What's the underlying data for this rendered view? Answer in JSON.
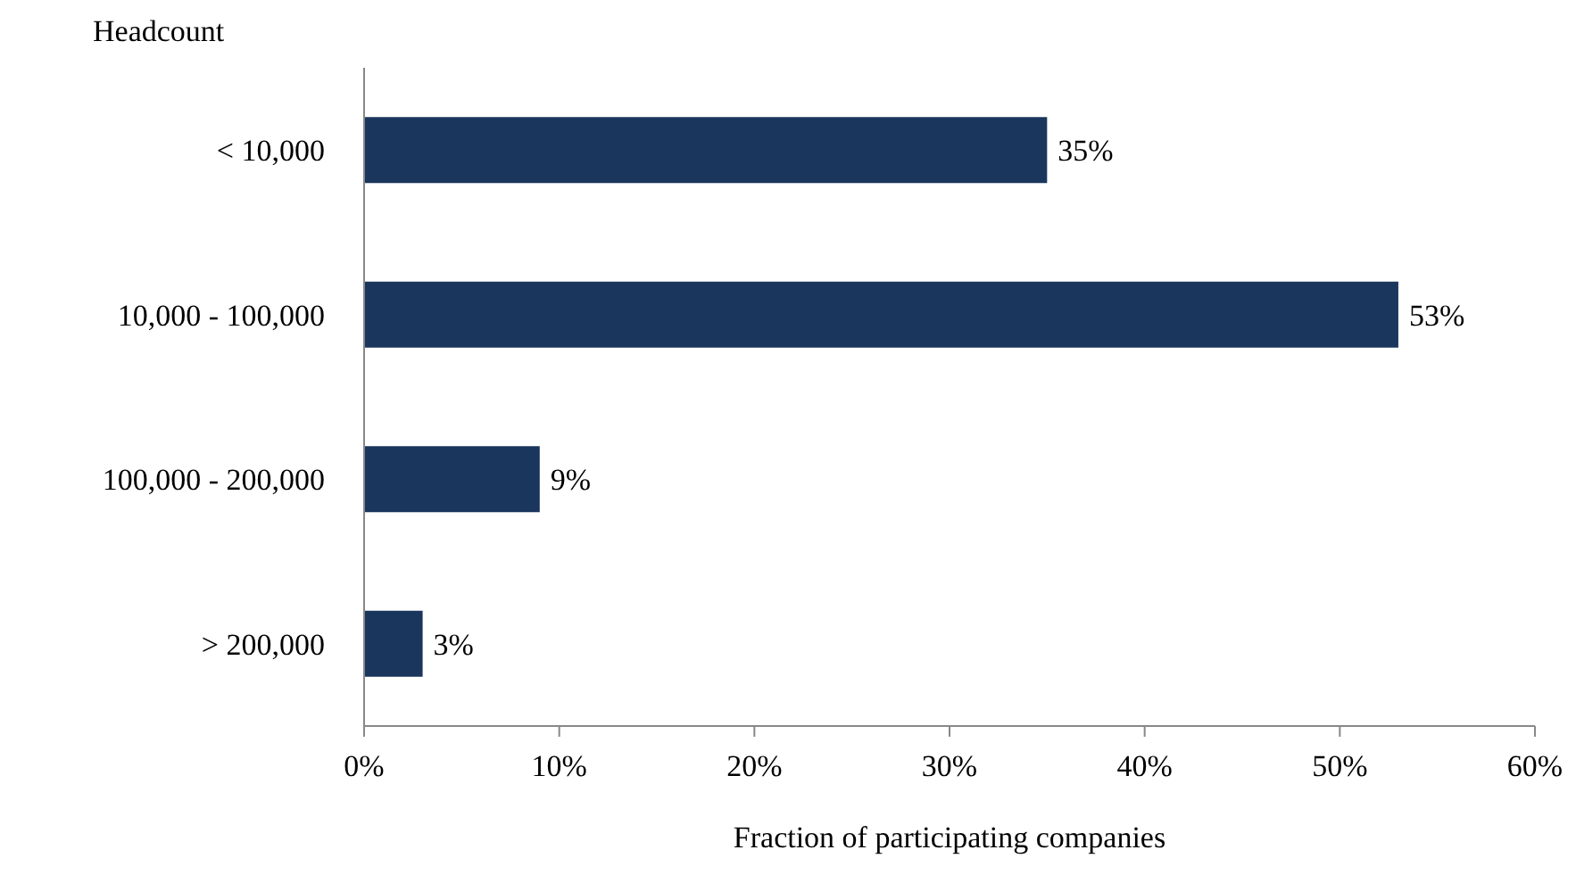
{
  "chart_data": {
    "type": "bar",
    "orientation": "horizontal",
    "ylabel": "Headcount",
    "xlabel": "Fraction of participating companies",
    "categories": [
      "< 10,000",
      "10,000 - 100,000",
      "100,000 - 200,000",
      "> 200,000"
    ],
    "values": [
      35,
      53,
      9,
      3
    ],
    "value_labels": [
      "35%",
      "53%",
      "9%",
      "3%"
    ],
    "color": "#1b365d",
    "xlim": [
      0,
      60
    ],
    "xticks": [
      {
        "value": 0,
        "label": "0%"
      },
      {
        "value": 10,
        "label": "10%"
      },
      {
        "value": 20,
        "label": "20%"
      },
      {
        "value": 30,
        "label": "30%"
      },
      {
        "value": 40,
        "label": "40%"
      },
      {
        "value": 50,
        "label": "50%"
      },
      {
        "value": 60,
        "label": "60%"
      }
    ],
    "grid": false,
    "legend": false
  }
}
